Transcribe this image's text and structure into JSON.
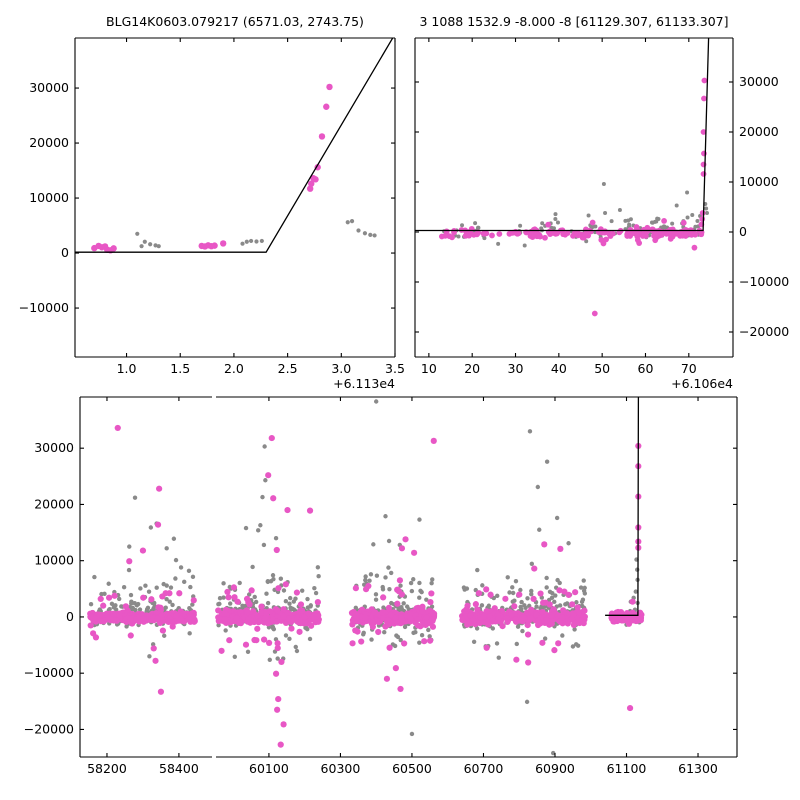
{
  "figure": {
    "background": "#ffffff",
    "pink_color": "#E857C5",
    "gray_color": "#8A8A8A",
    "axis_color": "#000000",
    "line_color": "#000000"
  },
  "chart_data": [
    {
      "id": "panel1",
      "type": "scatter",
      "title": "BLG14K0603.079217 (6571.03, 2743.75)",
      "x_offset_label": "+6.113e4",
      "xlim": [
        0.52,
        3.5
      ],
      "ylim": [
        -18900,
        39100
      ],
      "xticks": [
        {
          "v": 1.0,
          "label": "1.0"
        },
        {
          "v": 1.5,
          "label": "1.5"
        },
        {
          "v": 2.0,
          "label": "2.0"
        },
        {
          "v": 2.5,
          "label": "2.5"
        },
        {
          "v": 3.0,
          "label": "3.0"
        },
        {
          "v": 3.5,
          "label": "3.5"
        }
      ],
      "yticks": [
        {
          "v": -10000,
          "label": "−10000"
        },
        {
          "v": 0,
          "label": "0"
        },
        {
          "v": 10000,
          "label": "10000"
        },
        {
          "v": 20000,
          "label": "20000"
        },
        {
          "v": 30000,
          "label": "30000"
        }
      ],
      "ytick_side": "left",
      "model_line": [
        [
          0.52,
          150
        ],
        [
          2.3,
          150
        ],
        [
          3.5,
          39800
        ]
      ],
      "gray_points": [
        [
          1.1,
          3500
        ],
        [
          1.14,
          1250
        ],
        [
          1.17,
          2050
        ],
        [
          1.22,
          1600
        ],
        [
          1.27,
          1400
        ],
        [
          1.3,
          1250
        ],
        [
          2.08,
          1700
        ],
        [
          2.12,
          2050
        ],
        [
          2.16,
          2200
        ],
        [
          2.21,
          2100
        ],
        [
          2.26,
          2200
        ],
        [
          3.06,
          5600
        ],
        [
          3.1,
          5800
        ],
        [
          3.16,
          4100
        ],
        [
          3.22,
          3600
        ],
        [
          3.27,
          3300
        ],
        [
          3.31,
          3200
        ]
      ],
      "pink_points": [
        [
          0.7,
          900
        ],
        [
          0.74,
          1300
        ],
        [
          0.77,
          1050
        ],
        [
          0.8,
          1200
        ],
        [
          0.82,
          600
        ],
        [
          0.85,
          500
        ],
        [
          0.88,
          850
        ],
        [
          1.7,
          1300
        ],
        [
          1.73,
          1200
        ],
        [
          1.76,
          1400
        ],
        [
          1.79,
          1250
        ],
        [
          1.82,
          1350
        ],
        [
          1.9,
          1750
        ],
        [
          2.71,
          11700
        ],
        [
          2.72,
          12600
        ],
        [
          2.74,
          13600
        ],
        [
          2.76,
          13400
        ],
        [
          2.78,
          15600
        ],
        [
          2.82,
          21200
        ],
        [
          2.86,
          26600
        ],
        [
          2.89,
          30200
        ]
      ],
      "clusters": []
    },
    {
      "id": "panel2",
      "type": "scatter",
      "title": "3 1088 1532.9 -8.000 -8 [61129.307, 61133.307]",
      "x_offset_label": "+6.106e4",
      "xlim": [
        6.8,
        80.2
      ],
      "ylim": [
        -25000,
        38800
      ],
      "xticks": [
        {
          "v": 10,
          "label": "10"
        },
        {
          "v": 20,
          "label": "20"
        },
        {
          "v": 30,
          "label": "30"
        },
        {
          "v": 40,
          "label": "40"
        },
        {
          "v": 50,
          "label": "50"
        },
        {
          "v": 60,
          "label": "60"
        },
        {
          "v": 70,
          "label": "70"
        }
      ],
      "yticks": [
        {
          "v": -20000,
          "label": "−20000"
        },
        {
          "v": -10000,
          "label": "−10000"
        },
        {
          "v": 0,
          "label": "0"
        },
        {
          "v": 10000,
          "label": "10000"
        },
        {
          "v": 20000,
          "label": "20000"
        },
        {
          "v": 30000,
          "label": "30000"
        }
      ],
      "ytick_side": "right",
      "model_line": [
        [
          6.8,
          300
        ],
        [
          73.3,
          300
        ],
        [
          74.6,
          39500
        ]
      ],
      "gray_points": [
        [
          39.2,
          2600
        ],
        [
          39.8,
          1900
        ],
        [
          50.4,
          9600
        ],
        [
          54.1,
          4400
        ],
        [
          56.0,
          2300
        ],
        [
          61.5,
          1900
        ],
        [
          63.0,
          2600
        ],
        [
          64.2,
          2300
        ],
        [
          67.2,
          5300
        ],
        [
          69.6,
          7900
        ],
        [
          70.8,
          3400
        ],
        [
          72.0,
          2200
        ],
        [
          72.6,
          3200
        ],
        [
          73.8,
          5600
        ],
        [
          74.2,
          3800
        ],
        [
          74.0,
          4700
        ]
      ],
      "pink_points": [
        [
          13.0,
          -900
        ],
        [
          47.8,
          1900
        ],
        [
          48.3,
          -16300
        ],
        [
          49.8,
          -1600
        ],
        [
          50.3,
          -2300
        ],
        [
          50.9,
          -1500
        ],
        [
          72.9,
          1500
        ],
        [
          73.1,
          2600
        ],
        [
          73.2,
          3800
        ],
        [
          73.4,
          11600
        ],
        [
          73.4,
          13500
        ],
        [
          73.5,
          15700
        ],
        [
          73.4,
          20000
        ],
        [
          73.5,
          26700
        ],
        [
          73.6,
          30300
        ]
      ],
      "clusters": [
        {
          "color": "gray",
          "x0": 13,
          "x1": 73.2,
          "n": 80,
          "mean": 250,
          "core_sd": 620,
          "tail_frac": 0.18,
          "tail_sd": 1500,
          "seed": 11
        },
        {
          "color": "gray",
          "x0": 55,
          "x1": 73.0,
          "n": 45,
          "mean": 350,
          "core_sd": 700,
          "tail_frac": 0.2,
          "tail_sd": 1400,
          "seed": 12
        },
        {
          "color": "pink",
          "x0": 13,
          "x1": 73.2,
          "n": 125,
          "mean": -250,
          "core_sd": 380,
          "tail_frac": 0.06,
          "tail_sd": 1100,
          "seed": 13
        },
        {
          "color": "pink",
          "x0": 55,
          "x1": 73.2,
          "n": 60,
          "mean": -200,
          "core_sd": 420,
          "tail_frac": 0.06,
          "tail_sd": 1000,
          "seed": 14
        }
      ]
    },
    {
      "id": "panel3",
      "type": "scatter",
      "title": "",
      "x_offset_label": "",
      "segments": [
        {
          "xlim": [
            58125,
            58492
          ]
        },
        {
          "xlim": [
            59952,
            61409
          ]
        }
      ],
      "ylim": [
        -24900,
        39100
      ],
      "xticks": [
        {
          "v": 58200,
          "label": "58200"
        },
        {
          "v": 58400,
          "label": "58400"
        },
        {
          "v": 60100,
          "label": "60100"
        },
        {
          "v": 60300,
          "label": "60300"
        },
        {
          "v": 60500,
          "label": "60500"
        },
        {
          "v": 60700,
          "label": "60700"
        },
        {
          "v": 60900,
          "label": "60900"
        },
        {
          "v": 61100,
          "label": "61100"
        },
        {
          "v": 61300,
          "label": "61300"
        }
      ],
      "yticks": [
        {
          "v": -20000,
          "label": "−20000"
        },
        {
          "v": -10000,
          "label": "−10000"
        },
        {
          "v": 0,
          "label": "0"
        },
        {
          "v": 10000,
          "label": "10000"
        },
        {
          "v": 20000,
          "label": "20000"
        },
        {
          "v": 30000,
          "label": "30000"
        }
      ],
      "ytick_side": "left",
      "model_line": [
        [
          61040,
          300
        ],
        [
          61132,
          300
        ],
        [
          61133.3,
          39500
        ]
      ],
      "gray_points": [
        [
          58278,
          21200
        ],
        [
          58338,
          16600
        ],
        [
          58322,
          15900
        ],
        [
          58386,
          13900
        ],
        [
          58366,
          12200
        ],
        [
          58262,
          12500
        ],
        [
          58392,
          10100
        ],
        [
          58406,
          8800
        ],
        [
          58428,
          8200
        ],
        [
          58318,
          -7000
        ],
        [
          60088,
          30300
        ],
        [
          60090,
          24300
        ],
        [
          60082,
          21300
        ],
        [
          60076,
          16300
        ],
        [
          60036,
          15800
        ],
        [
          60070,
          15400
        ],
        [
          60120,
          14000
        ],
        [
          60086,
          12800
        ],
        [
          60140,
          -7400
        ],
        [
          60400,
          38300
        ],
        [
          60426,
          17900
        ],
        [
          60521,
          17300
        ],
        [
          60436,
          13500
        ],
        [
          60392,
          12900
        ],
        [
          60466,
          12800
        ],
        [
          60500,
          -20800
        ],
        [
          60830,
          33000
        ],
        [
          60878,
          27600
        ],
        [
          60852,
          23100
        ],
        [
          60906,
          17600
        ],
        [
          60856,
          15500
        ],
        [
          60938,
          13100
        ],
        [
          60895,
          -24200
        ],
        [
          60822,
          -15100
        ],
        [
          61128,
          10200
        ],
        [
          61130,
          8400
        ],
        [
          61131,
          6600
        ],
        [
          61126,
          4500
        ],
        [
          61120,
          3400
        ],
        [
          61112,
          2700
        ]
      ],
      "pink_points": [
        [
          58230,
          33600
        ],
        [
          58345,
          22800
        ],
        [
          58342,
          16400
        ],
        [
          58300,
          11800
        ],
        [
          58262,
          9900
        ],
        [
          58350,
          -13300
        ],
        [
          58335,
          -7800
        ],
        [
          58330,
          -5600
        ],
        [
          60108,
          31800
        ],
        [
          60098,
          25200
        ],
        [
          60112,
          21100
        ],
        [
          60152,
          19000
        ],
        [
          60215,
          18900
        ],
        [
          60122,
          11900
        ],
        [
          60135,
          -8000
        ],
        [
          60120,
          -10100
        ],
        [
          60126,
          -14600
        ],
        [
          60123,
          -16500
        ],
        [
          60141,
          -19100
        ],
        [
          60133,
          -22700
        ],
        [
          60561,
          31300
        ],
        [
          60482,
          13800
        ],
        [
          60472,
          12200
        ],
        [
          60506,
          11400
        ],
        [
          60430,
          -11000
        ],
        [
          60468,
          -12800
        ],
        [
          60455,
          -9100
        ],
        [
          60870,
          12900
        ],
        [
          60915,
          12100
        ],
        [
          60842,
          8600
        ],
        [
          60792,
          -7600
        ],
        [
          60825,
          -8100
        ],
        [
          61133,
          30400
        ],
        [
          61133,
          26800
        ],
        [
          61133,
          21400
        ],
        [
          61133,
          15900
        ],
        [
          61133,
          13400
        ],
        [
          61133,
          12300
        ],
        [
          61110,
          -16200
        ]
      ],
      "clusters": [
        {
          "color": "gray",
          "x0": 58155,
          "x1": 58440,
          "n": 190,
          "mean": 400,
          "core_sd": 950,
          "tail_frac": 0.28,
          "tail_sd": 3200,
          "seed": 21
        },
        {
          "color": "gray",
          "x0": 59958,
          "x1": 60240,
          "n": 220,
          "mean": 400,
          "core_sd": 1100,
          "tail_frac": 0.3,
          "tail_sd": 3400,
          "seed": 22
        },
        {
          "color": "gray",
          "x0": 60335,
          "x1": 60560,
          "n": 175,
          "mean": 400,
          "core_sd": 1100,
          "tail_frac": 0.3,
          "tail_sd": 3300,
          "seed": 23
        },
        {
          "color": "gray",
          "x0": 60640,
          "x1": 60985,
          "n": 240,
          "mean": 400,
          "core_sd": 1150,
          "tail_frac": 0.3,
          "tail_sd": 3400,
          "seed": 24
        },
        {
          "color": "gray",
          "x0": 61095,
          "x1": 61140,
          "n": 18,
          "mean": 500,
          "core_sd": 800,
          "tail_frac": 0.25,
          "tail_sd": 1500,
          "seed": 25
        },
        {
          "color": "pink",
          "x0": 58152,
          "x1": 58445,
          "n": 330,
          "mean": -100,
          "core_sd": 450,
          "tail_frac": 0.1,
          "tail_sd": 2500,
          "seed": 31
        },
        {
          "color": "pink",
          "x0": 59958,
          "x1": 60240,
          "n": 340,
          "mean": -100,
          "core_sd": 520,
          "tail_frac": 0.13,
          "tail_sd": 3200,
          "seed": 32
        },
        {
          "color": "pink",
          "x0": 60332,
          "x1": 60562,
          "n": 300,
          "mean": -100,
          "core_sd": 550,
          "tail_frac": 0.14,
          "tail_sd": 3200,
          "seed": 33
        },
        {
          "color": "pink",
          "x0": 60640,
          "x1": 60985,
          "n": 380,
          "mean": -100,
          "core_sd": 550,
          "tail_frac": 0.12,
          "tail_sd": 2600,
          "seed": 34
        },
        {
          "color": "pink",
          "x0": 61058,
          "x1": 61142,
          "n": 95,
          "mean": -100,
          "core_sd": 450,
          "tail_frac": 0.04,
          "tail_sd": 1200,
          "seed": 35
        }
      ]
    }
  ]
}
